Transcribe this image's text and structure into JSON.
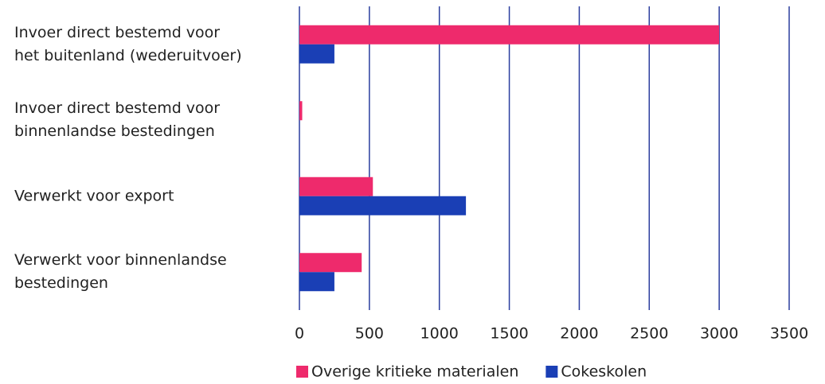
{
  "chart_data": {
    "type": "hbar",
    "categories": [
      "Invoer direct bestemd voor\nhet buitenland (wederuitvoer)",
      "Invoer direct bestemd voor\nbinnenlandse bestedingen",
      "Verwerkt voor export",
      "Verwerkt voor binnenlandse\nbestedingen"
    ],
    "series": [
      {
        "name": "Overige kritieke materialen",
        "color": "#ee2a6c",
        "values": [
          3000,
          20,
          525,
          445
        ]
      },
      {
        "name": "Cokeskolen",
        "color": "#1a3fb5",
        "values": [
          250,
          0,
          1190,
          250
        ]
      }
    ],
    "xlim": [
      0,
      3500
    ],
    "xticks": [
      0,
      500,
      1000,
      1500,
      2000,
      2500,
      3000,
      3500
    ],
    "grid": true
  }
}
